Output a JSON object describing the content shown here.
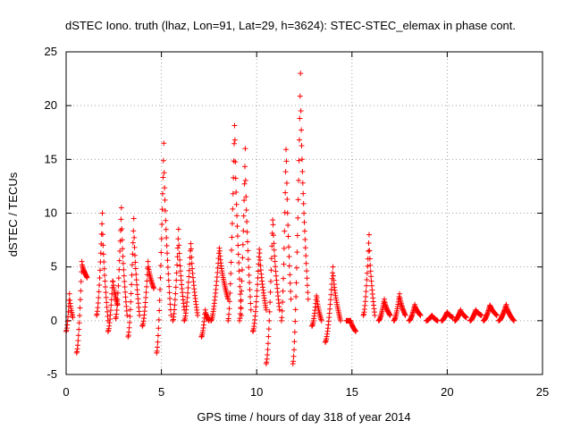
{
  "chart_data": {
    "type": "scatter",
    "title": "dSTEC Iono. truth (lhaz, Lon=91, Lat=29, h=3624): STEC-STEC_elemax in phase cont.",
    "xlabel": "GPS time / hours of day 318 of year 2014",
    "ylabel": "dSTEC  / TECUs",
    "xlim": [
      0,
      25
    ],
    "ylim": [
      -5,
      25
    ],
    "xticks": [
      "0",
      "5",
      "10",
      "15",
      "20",
      "25"
    ],
    "yticks": [
      "-5",
      "0",
      "5",
      "10",
      "15",
      "20",
      "25"
    ],
    "grid": true,
    "marker": "+",
    "marker_color": "#ff0000",
    "arcs": [
      {
        "t0": 0.0,
        "t1": 0.35,
        "y0": -1.0,
        "peak": 2.5,
        "y1": 0.3
      },
      {
        "t0": 0.55,
        "t1": 1.1,
        "y0": -3.0,
        "peak": 5.5,
        "y1": 4.0
      },
      {
        "t0": 1.6,
        "t1": 2.2,
        "y0": 0.5,
        "peak": 10.0,
        "y1": 0.0
      },
      {
        "t0": 2.2,
        "t1": 2.7,
        "y0": -1.0,
        "peak": 4.0,
        "y1": 1.5
      },
      {
        "t0": 2.6,
        "t1": 3.2,
        "y0": 0.2,
        "peak": 10.5,
        "y1": 0.5
      },
      {
        "t0": 3.25,
        "t1": 3.85,
        "y0": -1.5,
        "peak": 9.5,
        "y1": 0.5
      },
      {
        "t0": 4.0,
        "t1": 4.6,
        "y0": -0.5,
        "peak": 5.5,
        "y1": 3.0
      },
      {
        "t0": 4.75,
        "t1": 5.5,
        "y0": -3.0,
        "peak": 16.5,
        "y1": 0.5
      },
      {
        "t0": 5.6,
        "t1": 6.2,
        "y0": 0.0,
        "peak": 8.5,
        "y1": 1.0
      },
      {
        "t0": 6.2,
        "t1": 6.9,
        "y0": 0.0,
        "peak": 7.5,
        "y1": 0.5
      },
      {
        "t0": 7.1,
        "t1": 7.5,
        "y0": -1.5,
        "peak": 1.0,
        "y1": 0.0
      },
      {
        "t0": 7.6,
        "t1": 8.5,
        "y0": 0.0,
        "peak": 7.0,
        "y1": 2.0
      },
      {
        "t0": 8.5,
        "t1": 9.2,
        "y0": 0.0,
        "peak": 19.0,
        "y1": 0.5
      },
      {
        "t0": 9.1,
        "t1": 9.7,
        "y0": 0.0,
        "peak": 16.0,
        "y1": 1.0
      },
      {
        "t0": 9.8,
        "t1": 10.5,
        "y0": -1.0,
        "peak": 7.0,
        "y1": 1.0
      },
      {
        "t0": 10.5,
        "t1": 11.2,
        "y0": -4.0,
        "peak": 10.0,
        "y1": 1.0
      },
      {
        "t0": 11.3,
        "t1": 11.8,
        "y0": 0.0,
        "peak": 17.0,
        "y1": 2.0
      },
      {
        "t0": 11.9,
        "t1": 12.7,
        "y0": -4.0,
        "peak": 23.0,
        "y1": 2.0
      },
      {
        "t0": 12.9,
        "t1": 13.4,
        "y0": -0.5,
        "peak": 2.5,
        "y1": 0.0
      },
      {
        "t0": 13.6,
        "t1": 14.4,
        "y0": -2.0,
        "peak": 5.0,
        "y1": 0.0
      },
      {
        "t0": 14.7,
        "t1": 15.2,
        "y0": 0.0,
        "peak": 0.0,
        "y1": -1.0
      },
      {
        "t0": 15.6,
        "t1": 16.2,
        "y0": 0.5,
        "peak": 8.0,
        "y1": 0.5
      },
      {
        "t0": 16.4,
        "t1": 17.0,
        "y0": 0.0,
        "peak": 2.0,
        "y1": 0.5
      },
      {
        "t0": 17.2,
        "t1": 17.8,
        "y0": 0.0,
        "peak": 2.5,
        "y1": 0.5
      },
      {
        "t0": 18.0,
        "t1": 18.6,
        "y0": 0.0,
        "peak": 1.5,
        "y1": 0.5
      },
      {
        "t0": 18.9,
        "t1": 19.5,
        "y0": 0.0,
        "peak": 0.5,
        "y1": 0.0
      },
      {
        "t0": 19.7,
        "t1": 20.3,
        "y0": 0.0,
        "peak": 0.8,
        "y1": 0.3
      },
      {
        "t0": 20.4,
        "t1": 21.0,
        "y0": 0.0,
        "peak": 1.0,
        "y1": 0.3
      },
      {
        "t0": 21.2,
        "t1": 21.8,
        "y0": 0.0,
        "peak": 1.0,
        "y1": 0.5
      },
      {
        "t0": 21.9,
        "t1": 22.6,
        "y0": 0.0,
        "peak": 1.5,
        "y1": 0.5
      },
      {
        "t0": 22.7,
        "t1": 23.5,
        "y0": 0.0,
        "peak": 1.5,
        "y1": 0.0
      }
    ]
  }
}
